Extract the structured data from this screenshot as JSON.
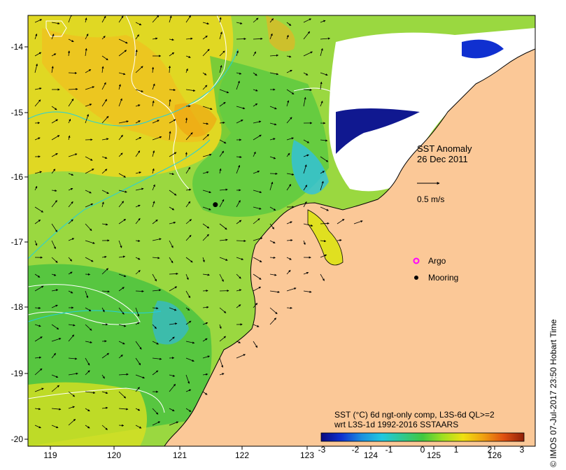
{
  "map": {
    "title_line1": "SST Anomaly",
    "title_line2": "26 Dec 2011",
    "scale_label": "0.5 m/s",
    "legend": {
      "argo_label": "Argo",
      "mooring_label": "Mooring",
      "argo_color": "#ff00ff",
      "mooring_color": "#000000"
    },
    "x_ticks": [
      "119",
      "120",
      "121",
      "122",
      "123",
      "124",
      "125",
      "126"
    ],
    "y_ticks": [
      "-14",
      "-15",
      "-16",
      "-17",
      "-18",
      "-19",
      "-20"
    ],
    "colorbar": {
      "line1": "SST (°C) 6d ngt-only comp, L3S-6d QL>=2",
      "line2": "wrt L3S-1d 1992-2016 SSTAARS",
      "ticks": [
        "-3",
        "-2",
        "-1",
        "0",
        "1",
        "2",
        "3"
      ],
      "colors": [
        "#0a0a80",
        "#1030d0",
        "#1a90e0",
        "#20c8e0",
        "#30c890",
        "#40c840",
        "#a0e020",
        "#f0e010",
        "#f0a010",
        "#e05010",
        "#902008"
      ]
    },
    "credit": "© IMOS 07-Jul-2017 23:50 Hobart Time",
    "land_color": "#fbc897",
    "mooring_site": {
      "lon": 121.6,
      "lat": -16.4
    }
  }
}
